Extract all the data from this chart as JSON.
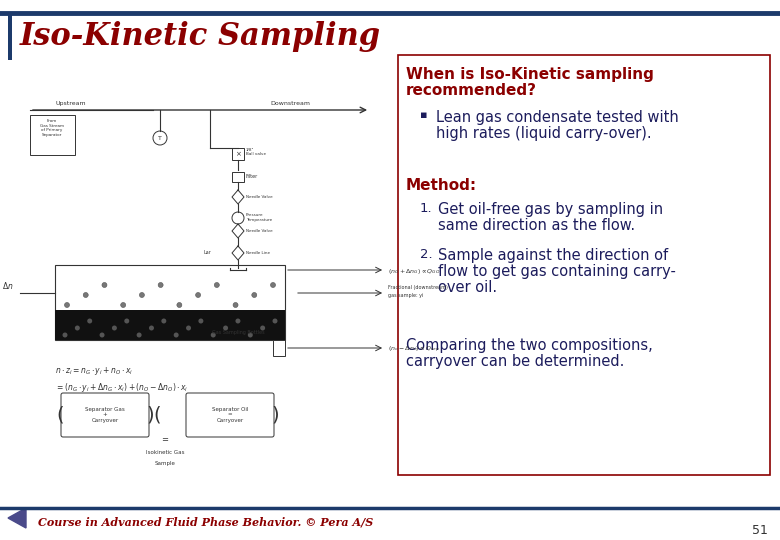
{
  "title": "Iso-Kinetic Sampling",
  "title_color": "#8B0000",
  "title_fontsize": 22,
  "background_color": "#FFFFFF",
  "border_color": "#1C3A6B",
  "right_box_border_color": "#8B0000",
  "right_box_bg": "#FFFFFF",
  "section_heading_line1": "When is Iso-Kinetic sampling",
  "section_heading_line2": "recommended?",
  "section_heading_color": "#8B0000",
  "section_heading_fontsize": 11,
  "bullet_text_line1": "Lean gas condensate tested with",
  "bullet_text_line2": "high rates (liquid carry-over).",
  "bullet_color": "#1C1C5C",
  "bullet_fontsize": 10.5,
  "method_heading": "Method:",
  "method_heading_color": "#8B0000",
  "method_heading_fontsize": 11,
  "method_item1_line1": "Get oil-free gas by sampling in",
  "method_item1_line2": "same direction as the flow.",
  "method_item2_line1": "Sample against the direction of",
  "method_item2_line2": "flow to get gas containing carry-",
  "method_item2_line3": "over oil.",
  "method_color": "#1C1C5C",
  "method_fontsize": 10.5,
  "compare_line1": "Comparing the two compositions,",
  "compare_line2": "carryover can be determined.",
  "compare_color": "#1C1C5C",
  "compare_fontsize": 10.5,
  "footer_text": "Course in Advanced Fluid Phase Behavior. © Pera A/S",
  "footer_color": "#8B0000",
  "footer_fontsize": 8,
  "page_number": "51",
  "top_border_color": "#1C3A6B",
  "bottom_border_color": "#1C3A6B",
  "nav_arrow_color": "#4a4a8a"
}
